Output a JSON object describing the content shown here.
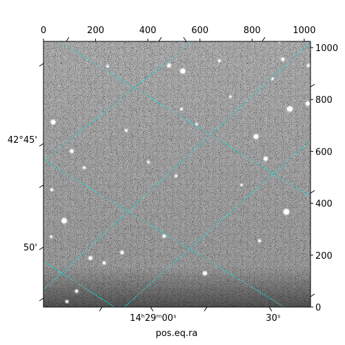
{
  "colors": {
    "grid": "#33cccc",
    "frame": "#000000",
    "background": "#ffffff"
  },
  "chart_data": {
    "type": "image",
    "xlabel": "pos.eq.ra",
    "pixel_axes": {
      "x_ticks": [
        0,
        200,
        400,
        600,
        800,
        1000
      ],
      "y_ticks": [
        0,
        200,
        400,
        600,
        800,
        1000
      ],
      "x_range": [
        0,
        1024
      ],
      "y_range": [
        0,
        1024
      ]
    },
    "world_axes": {
      "ra_ticks": [
        "14ʰ29ᵐ00ˢ",
        "30ˢ"
      ],
      "dec_ticks": [
        "42°45'",
        "50'"
      ]
    },
    "grid": true,
    "colormap": "gray"
  }
}
